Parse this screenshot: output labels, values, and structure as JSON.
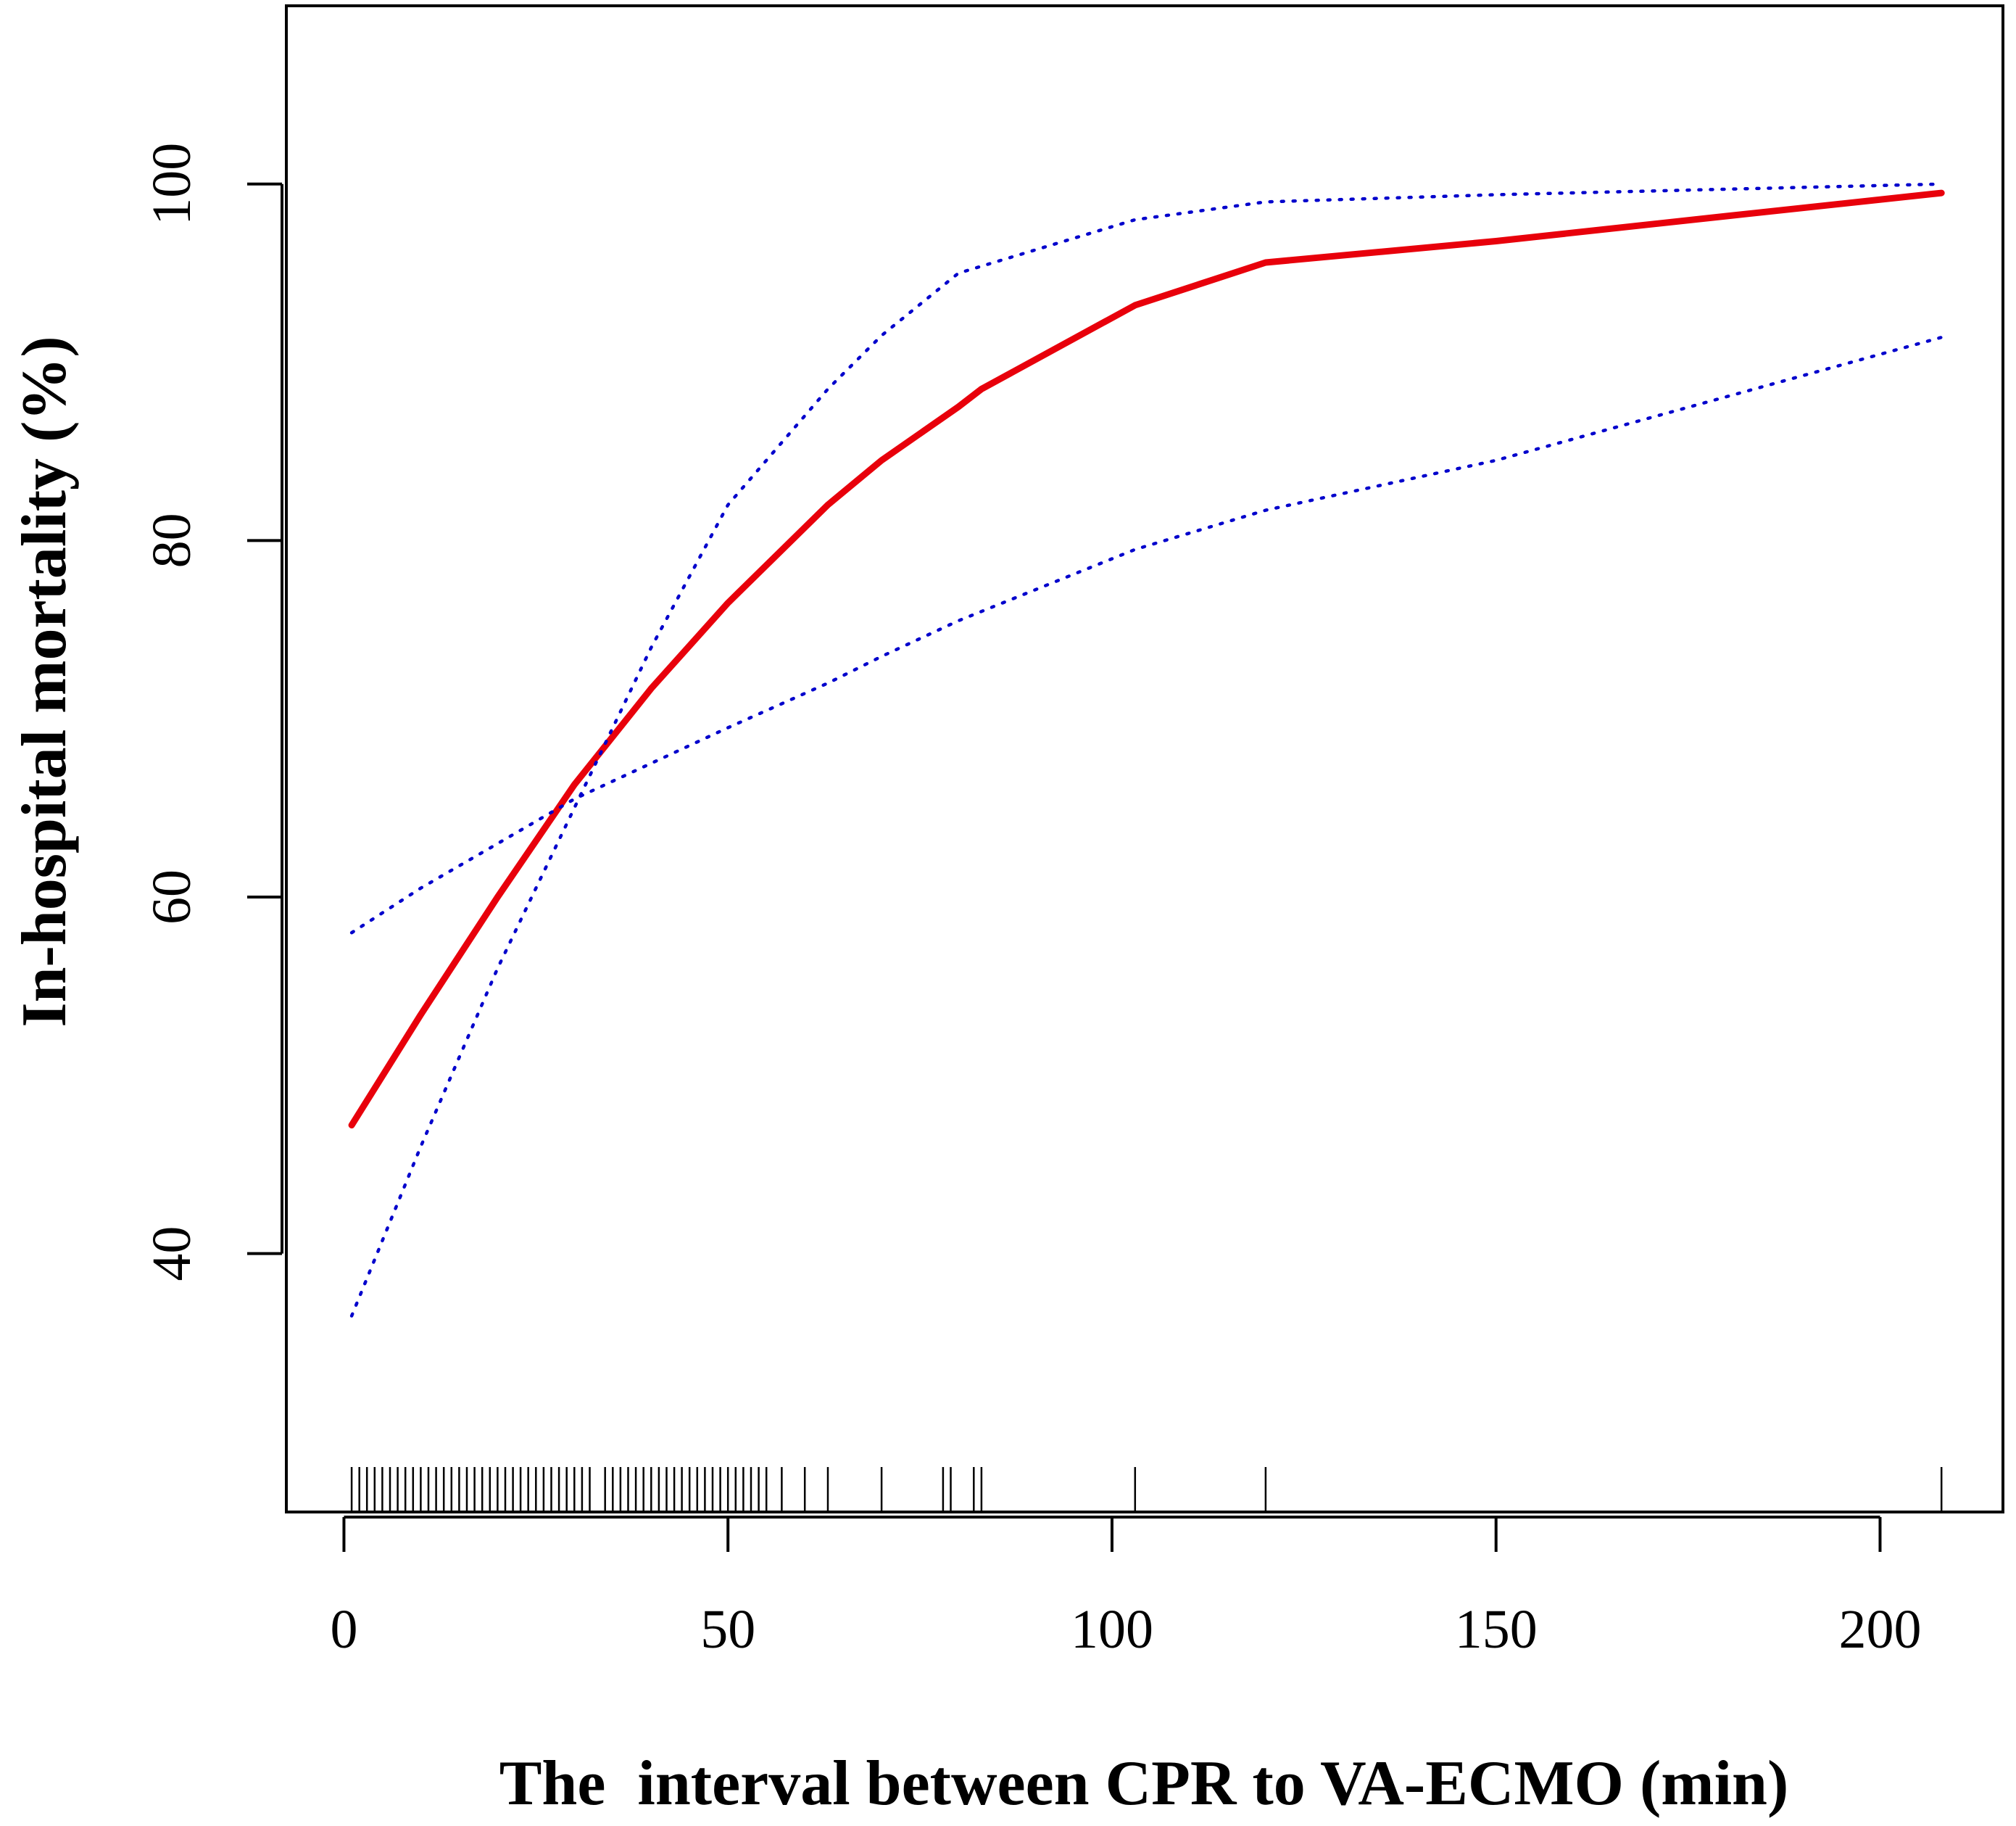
{
  "chart_data": {
    "type": "line",
    "title": "",
    "xlabel": "The  interval between CPR to VA-ECMO (min)",
    "ylabel": "In-hospital mortality (%)",
    "xlim": [
      -7.5,
      216
    ],
    "ylim": [
      25.5,
      110
    ],
    "x_ticks": [
      0,
      50,
      100,
      150,
      200
    ],
    "y_ticks": [
      40,
      60,
      80,
      100
    ],
    "x_tick_labels": [
      "0",
      "50",
      "100",
      "150",
      "200"
    ],
    "y_tick_labels": [
      "40",
      "60",
      "80",
      "100"
    ],
    "grid": false,
    "legend": false,
    "series": [
      {
        "role": "estimate",
        "color": "#e8000b",
        "style": "solid",
        "x": [
          1,
          10,
          20,
          30,
          40,
          50,
          63,
          70,
          80,
          83,
          103,
          120,
          150,
          180,
          208
        ],
        "y": [
          47.2,
          53.4,
          60.0,
          66.3,
          71.7,
          76.5,
          82.0,
          84.5,
          87.5,
          88.5,
          93.2,
          95.6,
          96.8,
          98.2,
          99.5
        ]
      },
      {
        "role": "upper-ci",
        "color": "#0000cc",
        "style": "dotted",
        "x": [
          1,
          10,
          20,
          30,
          40,
          50,
          63,
          70,
          80,
          103,
          120,
          150,
          208
        ],
        "y": [
          36.5,
          46.0,
          56.0,
          65.0,
          74.0,
          82.0,
          88.5,
          91.5,
          95.0,
          98.0,
          99.0,
          99.4,
          100.0
        ]
      },
      {
        "role": "lower-ci",
        "color": "#0000cc",
        "style": "dotted",
        "x": [
          1,
          10,
          20,
          30,
          40,
          50,
          63,
          70,
          80,
          103,
          120,
          150,
          208
        ],
        "y": [
          58.0,
          60.5,
          63.0,
          65.5,
          67.5,
          69.5,
          72.0,
          73.5,
          75.5,
          79.5,
          81.7,
          84.5,
          91.4
        ]
      }
    ],
    "rug": [
      1,
      2,
      3,
      4,
      5,
      6,
      7,
      8,
      9,
      10,
      11,
      12,
      13,
      14,
      15,
      16,
      17,
      18,
      19,
      20,
      21,
      22,
      23,
      24,
      25,
      26,
      27,
      28,
      29,
      30,
      31,
      32,
      34,
      35,
      36,
      37,
      38,
      39,
      40,
      41,
      42,
      43,
      44,
      45,
      46,
      47,
      48,
      49,
      50,
      51,
      52,
      53,
      54,
      55,
      57,
      60,
      63,
      70,
      78,
      79,
      82,
      83,
      103,
      120,
      208
    ]
  }
}
